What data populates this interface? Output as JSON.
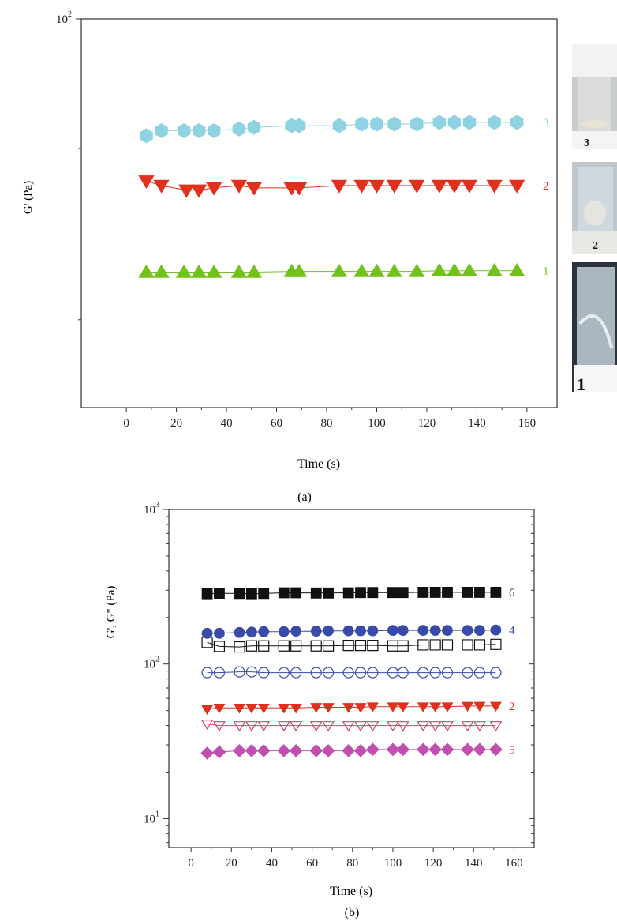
{
  "panel_a": {
    "caption": "(a)",
    "photo_labels": [
      "3",
      "2",
      "1"
    ]
  },
  "panel_b": {
    "caption": "(b)"
  },
  "chart_data": [
    {
      "type": "scatter",
      "title": "",
      "xlabel": "Time (s)",
      "ylabel": "G' (Pa)",
      "xlim": [
        -18,
        172
      ],
      "x_ticks": [
        0,
        20,
        40,
        60,
        80,
        100,
        120,
        140,
        160
      ],
      "y_scale": "log",
      "ylim": [
        12.5,
        100
      ],
      "y_tick_labels": [
        {
          "value": 100,
          "base": "10",
          "exp": "2"
        }
      ],
      "grid": false,
      "legend": "none (series numbered at line ends)",
      "series": [
        {
          "name": "3",
          "color": "#8fd3e3",
          "marker": "hexagon",
          "fill": "filled",
          "x": [
            8,
            14,
            23,
            29,
            35,
            45,
            51,
            66,
            69,
            85,
            94,
            100,
            107,
            116,
            125,
            131,
            137,
            147,
            156
          ],
          "y": [
            53.5,
            55,
            55,
            55,
            55,
            55.5,
            56,
            56.5,
            56.5,
            56.5,
            57,
            57,
            57,
            57,
            57.5,
            57.5,
            57.5,
            57.5,
            57.5
          ]
        },
        {
          "name": "2",
          "color": "#e0311f",
          "marker": "triangle-down",
          "fill": "filled",
          "x": [
            8,
            14,
            24,
            29,
            35,
            45,
            51,
            66,
            69,
            85,
            94,
            100,
            107,
            116,
            125,
            131,
            137,
            147,
            156
          ],
          "y": [
            42,
            41,
            40,
            40,
            40.5,
            41,
            40.5,
            40.5,
            40.5,
            41,
            41,
            41,
            41,
            41,
            41,
            41,
            41,
            41,
            41
          ]
        },
        {
          "name": "1",
          "color": "#73c21b",
          "marker": "triangle-up",
          "fill": "filled",
          "x": [
            8,
            14,
            23,
            29,
            35,
            45,
            51,
            66,
            69,
            85,
            94,
            100,
            107,
            116,
            125,
            131,
            137,
            147,
            156
          ],
          "y": [
            25.8,
            25.8,
            25.8,
            25.8,
            25.8,
            25.8,
            25.8,
            25.9,
            25.9,
            25.9,
            25.9,
            25.9,
            25.9,
            25.9,
            26,
            26,
            26,
            26,
            26
          ]
        }
      ]
    },
    {
      "type": "scatter",
      "title": "",
      "xlabel": "Time (s)",
      "ylabel": "G', G\" (Pa)",
      "xlim": [
        -11,
        170
      ],
      "x_ticks": [
        0,
        20,
        40,
        60,
        80,
        100,
        120,
        140,
        160
      ],
      "y_scale": "log",
      "ylim": [
        6.5,
        1000
      ],
      "y_tick_labels": [
        {
          "value": 10,
          "base": "10",
          "exp": "1"
        },
        {
          "value": 100,
          "base": "10",
          "exp": "2"
        },
        {
          "value": 1000,
          "base": "10",
          "exp": "3"
        }
      ],
      "grid": false,
      "legend": "none (series numbered at line ends)",
      "x": [
        8,
        14,
        24,
        30,
        36,
        46,
        52,
        62,
        68,
        78,
        84,
        90,
        100,
        105,
        115,
        121,
        127,
        137,
        143,
        151
      ],
      "series": [
        {
          "name": "6",
          "color": "#111111",
          "marker": "square",
          "fill": "filled",
          "y": [
            285,
            287,
            286,
            285,
            286,
            289,
            289,
            288,
            288,
            289,
            290,
            290,
            290,
            290,
            291,
            291,
            291,
            291,
            291,
            291
          ]
        },
        {
          "name": "",
          "color": "#111111",
          "marker": "square",
          "fill": "open",
          "y": [
            138,
            130,
            129,
            131,
            131,
            131,
            131,
            131,
            131,
            132,
            132,
            132,
            131,
            131,
            133,
            133,
            133,
            133,
            133,
            134
          ]
        },
        {
          "name": "4",
          "color": "#3a4aa8",
          "marker": "circle",
          "fill": "filled",
          "y": [
            158,
            158,
            160,
            161,
            162,
            162,
            163,
            163,
            164,
            164,
            164,
            164,
            165,
            165,
            165,
            165,
            165,
            165,
            165,
            166
          ]
        },
        {
          "name": "",
          "color": "#3a4aa8",
          "marker": "circle",
          "fill": "open",
          "y": [
            88,
            88,
            89,
            89,
            88,
            88,
            88,
            88,
            88,
            88,
            88,
            88,
            88,
            88,
            88,
            88,
            88,
            88,
            88,
            88
          ]
        },
        {
          "name": "2",
          "color": "#e0311f",
          "marker": "triangle-down",
          "fill": "filled",
          "y": [
            51,
            52,
            52,
            52,
            52,
            52,
            52,
            52.5,
            52.5,
            52.5,
            52.5,
            53,
            53,
            53,
            53,
            53,
            53,
            53.5,
            53.5,
            53.5
          ]
        },
        {
          "name": "",
          "color": "#d6406a",
          "marker": "triangle-down",
          "fill": "open",
          "y": [
            41,
            40,
            40,
            40,
            40,
            40,
            40,
            40,
            40,
            40,
            40,
            40,
            40,
            40,
            40,
            40,
            40,
            40,
            40,
            40
          ]
        },
        {
          "name": "5",
          "color": "#c04fb0",
          "marker": "diamond",
          "fill": "filled",
          "y": [
            26.5,
            27,
            27.5,
            27.5,
            27.5,
            27.5,
            27.5,
            27.5,
            27.5,
            27.5,
            27.5,
            28,
            28,
            28,
            28,
            28,
            28,
            28,
            28,
            28
          ]
        }
      ]
    }
  ]
}
